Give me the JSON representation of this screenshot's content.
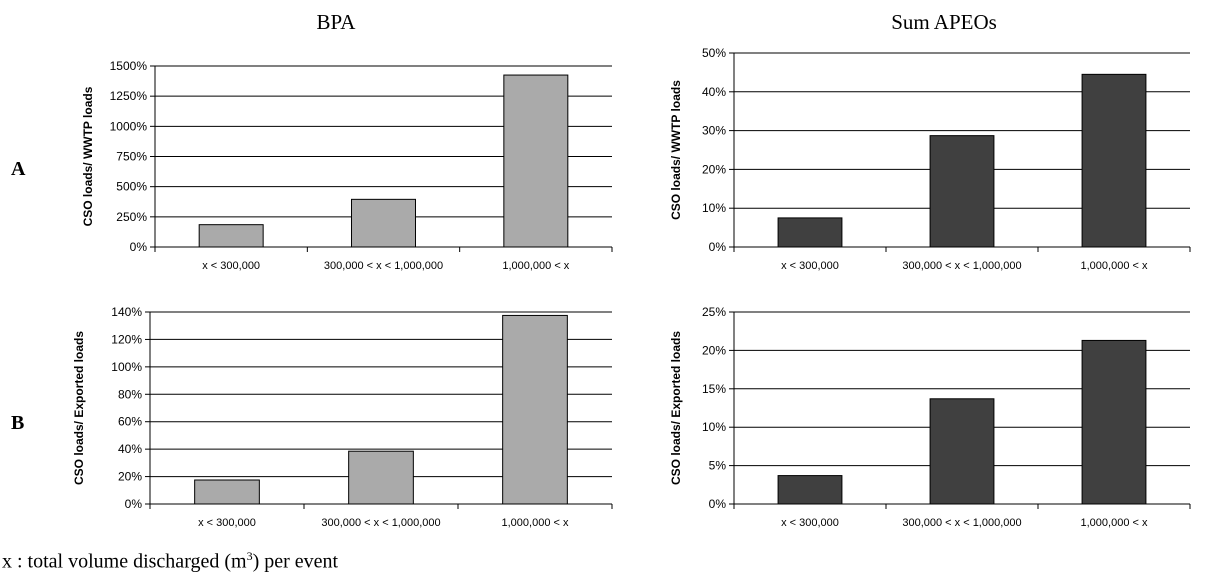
{
  "column_titles": [
    "BPA",
    "Sum APEOs"
  ],
  "row_labels": [
    "A",
    "B"
  ],
  "footnote": {
    "prefix": "x : total volume discharged (m",
    "sup": "3",
    "suffix": ") per event"
  },
  "colors": {
    "bpa_bar": "#aaaaaa",
    "apeo_bar": "#404040",
    "bar_stroke": "#000000",
    "grid": "#000000"
  },
  "chart_data": [
    {
      "id": "bpa-a",
      "type": "bar",
      "title": "BPA",
      "row": "A",
      "categories": [
        "x < 300,000",
        "300,000 < x < 1,000,000",
        "1,000,000 < x"
      ],
      "values": [
        185,
        395,
        1425
      ],
      "ylabel": "CSO loads/ WWTP loads",
      "ylim": [
        0,
        1500
      ],
      "yticks": [
        0,
        250,
        500,
        750,
        1000,
        1250,
        1500
      ],
      "ytick_labels": [
        "0%",
        "250%",
        "500%",
        "750%",
        "1000%",
        "1250%",
        "1500%"
      ],
      "grid": true,
      "color": "#aaaaaa"
    },
    {
      "id": "apeo-a",
      "type": "bar",
      "title": "Sum APEOs",
      "row": "A",
      "categories": [
        "x < 300,000",
        "300,000 < x < 1,000,000",
        "1,000,000 < x"
      ],
      "values": [
        7.5,
        28.7,
        44.5
      ],
      "ylabel": "CSO loads/ WWTP loads",
      "ylim": [
        0,
        50
      ],
      "yticks": [
        0,
        10,
        20,
        30,
        40,
        50
      ],
      "ytick_labels": [
        "0%",
        "10%",
        "20%",
        "30%",
        "40%",
        "50%"
      ],
      "grid": true,
      "color": "#404040"
    },
    {
      "id": "bpa-b",
      "type": "bar",
      "title": "BPA",
      "row": "B",
      "categories": [
        "x < 300,000",
        "300,000 < x < 1,000,000",
        "1,000,000 < x"
      ],
      "values": [
        17.5,
        38.5,
        137.5
      ],
      "ylabel": "CSO loads/ Exported loads",
      "ylim": [
        0,
        140
      ],
      "yticks": [
        0,
        20,
        40,
        60,
        80,
        100,
        120,
        140
      ],
      "ytick_labels": [
        "0%",
        "20%",
        "40%",
        "60%",
        "80%",
        "100%",
        "120%",
        "140%"
      ],
      "grid": true,
      "color": "#aaaaaa"
    },
    {
      "id": "apeo-b",
      "type": "bar",
      "title": "Sum APEOs",
      "row": "B",
      "categories": [
        "x < 300,000",
        "300,000 < x < 1,000,000",
        "1,000,000 < x"
      ],
      "values": [
        3.7,
        13.7,
        21.3
      ],
      "ylabel": "CSO loads/ Exported loads",
      "ylim": [
        0,
        25
      ],
      "yticks": [
        0,
        5,
        10,
        15,
        20,
        25
      ],
      "ytick_labels": [
        "0%",
        "5%",
        "10%",
        "15%",
        "20%",
        "25%"
      ],
      "grid": true,
      "color": "#404040"
    }
  ]
}
